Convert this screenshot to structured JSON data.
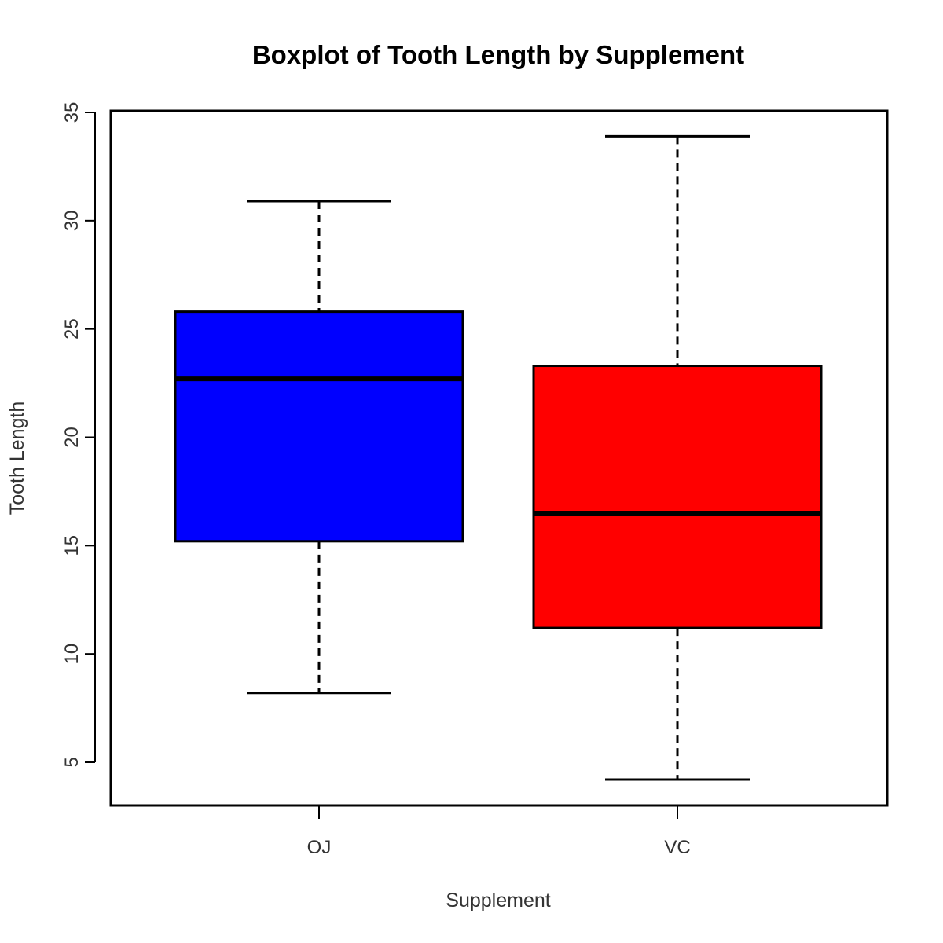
{
  "chart_data": {
    "type": "boxplot",
    "title": "Boxplot of Tooth Length by Supplement",
    "xlabel": "Supplement",
    "ylabel": "Tooth Length",
    "categories": [
      "OJ",
      "VC"
    ],
    "ylim": [
      3,
      35
    ],
    "yticks": [
      5,
      10,
      15,
      20,
      25,
      30,
      35
    ],
    "ytick_labels": [
      "5",
      "10",
      "15",
      "20",
      "25",
      "30",
      "35"
    ],
    "grid": false,
    "legend": "none",
    "boxes": [
      {
        "category": "OJ",
        "whisker_low": 8.2,
        "q1": 15.2,
        "median": 22.7,
        "q3": 25.8,
        "whisker_high": 30.9,
        "color": "#0000ff"
      },
      {
        "category": "VC",
        "whisker_low": 4.2,
        "q1": 11.2,
        "median": 16.5,
        "q3": 23.3,
        "whisker_high": 33.9,
        "color": "#ff0000"
      }
    ]
  }
}
